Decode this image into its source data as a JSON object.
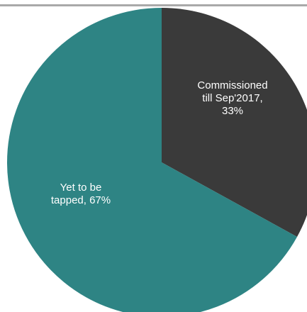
{
  "chart_data": {
    "type": "pie",
    "title": "",
    "start_angle_deg": 0,
    "direction": "clockwise",
    "slices": [
      {
        "label_lines": [
          "Commissioned",
          "till Sep'2017,",
          "33%"
        ],
        "value": 33,
        "color": "#3a3a3a"
      },
      {
        "label_lines": [
          "Yet to be",
          "tapped, 67%"
        ],
        "value": 67,
        "color": "#2e8484"
      }
    ],
    "legend": "none"
  }
}
